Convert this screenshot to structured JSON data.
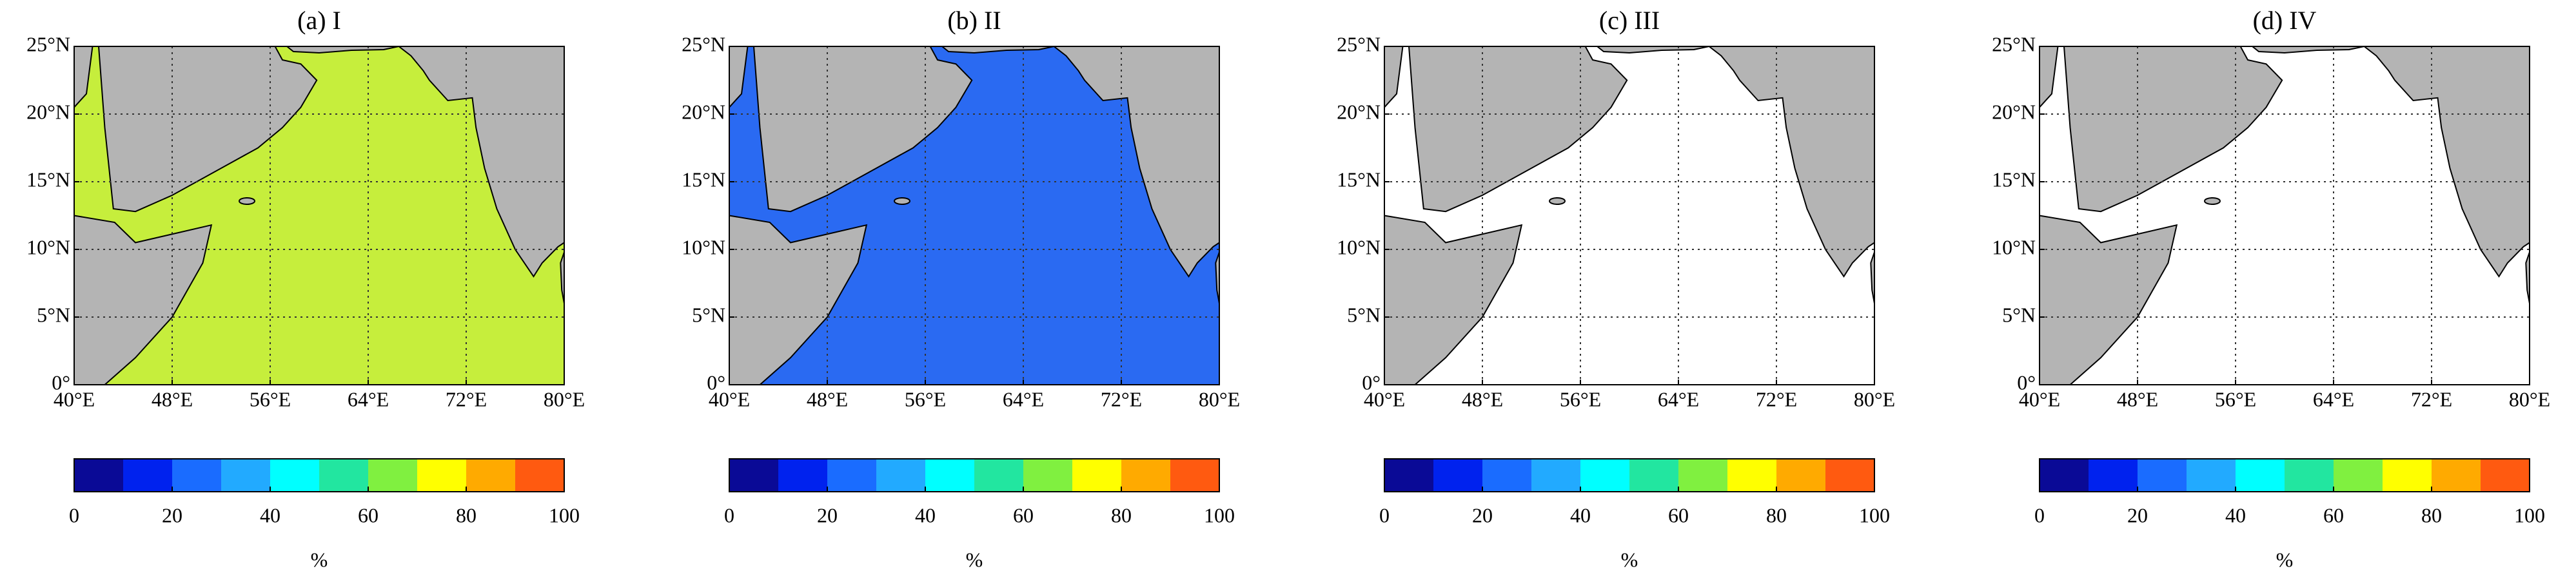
{
  "chart_data": [
    {
      "type": "map",
      "title": "(a) I",
      "ocean_color": "#c6ee3c",
      "xlim": [
        40,
        80
      ],
      "xticks": [
        {
          "value": 40,
          "label": "40°E"
        },
        {
          "value": 48,
          "label": "48°E"
        },
        {
          "value": 56,
          "label": "56°E"
        },
        {
          "value": 64,
          "label": "64°E"
        },
        {
          "value": 72,
          "label": "72°E"
        },
        {
          "value": 80,
          "label": "80°E"
        }
      ],
      "ylim": [
        0,
        25
      ],
      "yticks": [
        {
          "value": 0,
          "label": "0°"
        },
        {
          "value": 5,
          "label": "5°N"
        },
        {
          "value": 10,
          "label": "10°N"
        },
        {
          "value": 15,
          "label": "15°N"
        },
        {
          "value": 20,
          "label": "20°N"
        },
        {
          "value": 25,
          "label": "25°N"
        }
      ],
      "grid": true,
      "clim": [
        0,
        100
      ],
      "cticks": [
        0,
        20,
        40,
        60,
        80,
        100
      ],
      "clabel": "%",
      "colors": [
        "#0a0a96",
        "#0022ee",
        "#1a6cff",
        "#22aaff",
        "#00ffff",
        "#22e6a0",
        "#80f040",
        "#ffff00",
        "#ffaa00",
        "#ff5a10"
      ]
    },
    {
      "type": "map",
      "title": "(b) II",
      "ocean_color": "#2a6af2",
      "xlim": [
        40,
        80
      ],
      "xticks": [
        {
          "value": 40,
          "label": "40°E"
        },
        {
          "value": 48,
          "label": "48°E"
        },
        {
          "value": 56,
          "label": "56°E"
        },
        {
          "value": 64,
          "label": "64°E"
        },
        {
          "value": 72,
          "label": "72°E"
        },
        {
          "value": 80,
          "label": "80°E"
        }
      ],
      "ylim": [
        0,
        25
      ],
      "yticks": [
        {
          "value": 0,
          "label": "0°"
        },
        {
          "value": 5,
          "label": "5°N"
        },
        {
          "value": 10,
          "label": "10°N"
        },
        {
          "value": 15,
          "label": "15°N"
        },
        {
          "value": 20,
          "label": "20°N"
        },
        {
          "value": 25,
          "label": "25°N"
        }
      ],
      "grid": true,
      "clim": [
        0,
        100
      ],
      "cticks": [
        0,
        20,
        40,
        60,
        80,
        100
      ],
      "clabel": "%",
      "colors": [
        "#0a0a96",
        "#0022ee",
        "#1a6cff",
        "#22aaff",
        "#00ffff",
        "#22e6a0",
        "#80f040",
        "#ffff00",
        "#ffaa00",
        "#ff5a10"
      ]
    },
    {
      "type": "map",
      "title": "(c) III",
      "ocean_color": "#ffffff",
      "xlim": [
        40,
        80
      ],
      "xticks": [
        {
          "value": 40,
          "label": "40°E"
        },
        {
          "value": 48,
          "label": "48°E"
        },
        {
          "value": 56,
          "label": "56°E"
        },
        {
          "value": 64,
          "label": "64°E"
        },
        {
          "value": 72,
          "label": "72°E"
        },
        {
          "value": 80,
          "label": "80°E"
        }
      ],
      "ylim": [
        0,
        25
      ],
      "yticks": [
        {
          "value": 0,
          "label": "0°"
        },
        {
          "value": 5,
          "label": "5°N"
        },
        {
          "value": 10,
          "label": "10°N"
        },
        {
          "value": 15,
          "label": "15°N"
        },
        {
          "value": 20,
          "label": "20°N"
        },
        {
          "value": 25,
          "label": "25°N"
        }
      ],
      "grid": true,
      "clim": [
        0,
        100
      ],
      "cticks": [
        0,
        20,
        40,
        60,
        80,
        100
      ],
      "clabel": "%",
      "colors": [
        "#0a0a96",
        "#0022ee",
        "#1a6cff",
        "#22aaff",
        "#00ffff",
        "#22e6a0",
        "#80f040",
        "#ffff00",
        "#ffaa00",
        "#ff5a10"
      ]
    },
    {
      "type": "map",
      "title": "(d) IV",
      "ocean_color": "#ffffff",
      "xlim": [
        40,
        80
      ],
      "xticks": [
        {
          "value": 40,
          "label": "40°E"
        },
        {
          "value": 48,
          "label": "48°E"
        },
        {
          "value": 56,
          "label": "56°E"
        },
        {
          "value": 64,
          "label": "64°E"
        },
        {
          "value": 72,
          "label": "72°E"
        },
        {
          "value": 80,
          "label": "80°E"
        }
      ],
      "ylim": [
        0,
        25
      ],
      "yticks": [
        {
          "value": 0,
          "label": "0°"
        },
        {
          "value": 5,
          "label": "5°N"
        },
        {
          "value": 10,
          "label": "10°N"
        },
        {
          "value": 15,
          "label": "15°N"
        },
        {
          "value": 20,
          "label": "20°N"
        },
        {
          "value": 25,
          "label": "25°N"
        }
      ],
      "grid": true,
      "clim": [
        0,
        100
      ],
      "cticks": [
        0,
        20,
        40,
        60,
        80,
        100
      ],
      "clabel": "%",
      "colors": [
        "#0a0a96",
        "#0022ee",
        "#1a6cff",
        "#22aaff",
        "#00ffff",
        "#22e6a0",
        "#80f040",
        "#ffff00",
        "#ffaa00",
        "#ff5a10"
      ]
    }
  ]
}
